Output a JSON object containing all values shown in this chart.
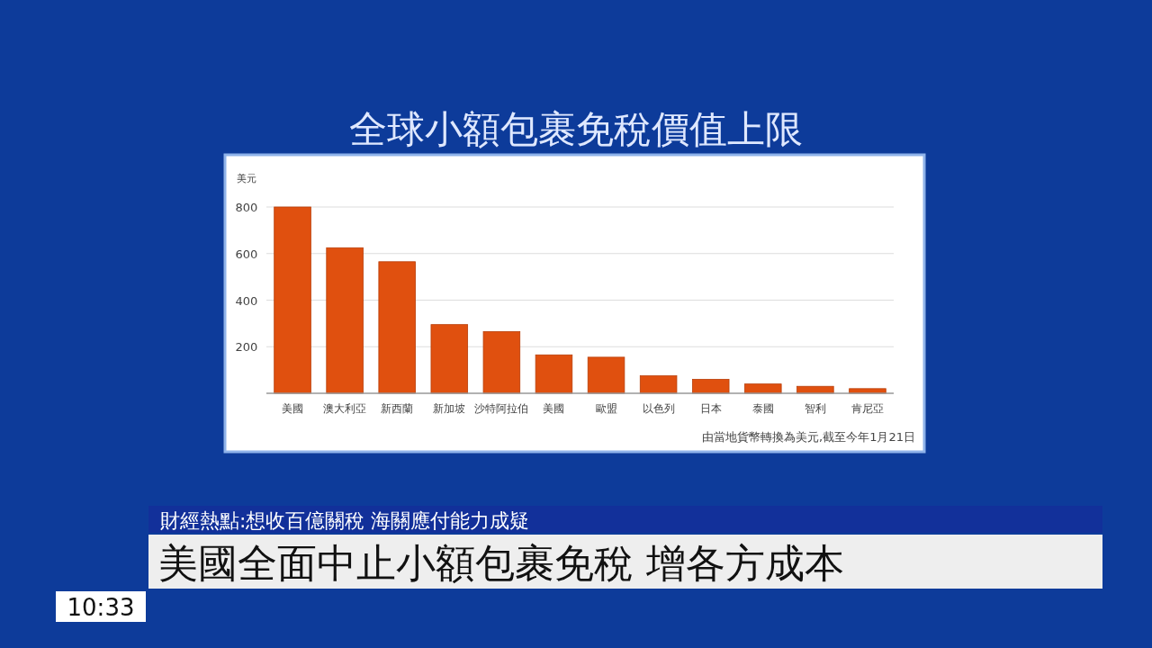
{
  "chart_data": {
    "type": "bar",
    "title": "全球小額包裹免稅價值上限",
    "ylabel": "美元",
    "categories": [
      "美國",
      "澳大利亞",
      "新西蘭",
      "新加坡",
      "沙特阿拉伯",
      "美國",
      "歐盟",
      "以色列",
      "日本",
      "泰國",
      "智利",
      "肯尼亞"
    ],
    "values": [
      800,
      625,
      565,
      295,
      265,
      165,
      155,
      75,
      60,
      40,
      30,
      20
    ],
    "color": "#e0500f",
    "ylim": [
      0,
      800
    ],
    "yticks": [
      200,
      400,
      600,
      800
    ],
    "grid": "y",
    "annotations": [
      "由當地貨幣轉換為美元,截至今年1月21日",
      "財經熱點:想收百億關稅 海關應付能力成疑",
      "美國全面中止小額包裹免稅 增各方成本",
      "10:33"
    ]
  }
}
